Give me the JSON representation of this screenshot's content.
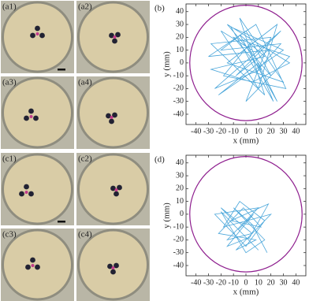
{
  "photo_panels": [
    {
      "label": "(a1)"
    },
    {
      "label": "(a2)"
    },
    {
      "label": "(a3)"
    },
    {
      "label": "(a4)"
    },
    {
      "label": "(c1)"
    },
    {
      "label": "(c2)"
    },
    {
      "label": "(c3)"
    },
    {
      "label": "(c4)"
    }
  ],
  "chart_data": [
    {
      "type": "line",
      "label": "(b)",
      "xlabel": "x (mm)",
      "ylabel": "y (mm)",
      "xlim": [
        -48,
        48
      ],
      "ylim": [
        -48,
        46
      ],
      "xticks": [
        -40,
        -30,
        -20,
        -10,
        0,
        10,
        20,
        30,
        40
      ],
      "yticks": [
        -40,
        -30,
        -20,
        -10,
        0,
        10,
        20,
        30,
        40
      ],
      "boundary": {
        "radius": 45,
        "color": "#8e1e8e"
      },
      "series": [
        {
          "color": "#4aa6da",
          "x": [
            5,
            -20,
            10,
            25,
            -15,
            30,
            -5,
            15,
            -28,
            20,
            0,
            35,
            -10,
            12,
            -25,
            28,
            -8,
            18,
            -30,
            8,
            32,
            -18,
            3,
            22,
            -12,
            30,
            -22,
            10,
            25,
            -5,
            15,
            -28,
            5,
            35,
            -15,
            20,
            0,
            -20,
            28,
            10
          ],
          "values": [
            10,
            25,
            -20,
            30,
            0,
            -15,
            35,
            -25,
            15,
            20,
            -30,
            5,
            20,
            -5,
            -20,
            25,
            -10,
            10,
            5,
            30,
            -20,
            -10,
            15,
            -30,
            28,
            10,
            -25,
            0,
            -30,
            22,
            5,
            -5,
            -15,
            0,
            30,
            -10,
            25,
            10,
            15,
            -5
          ]
        }
      ]
    },
    {
      "type": "line",
      "label": "(d)",
      "xlabel": "x (mm)",
      "ylabel": "y (mm)",
      "xlim": [
        -48,
        48
      ],
      "ylim": [
        -48,
        46
      ],
      "xticks": [
        -40,
        -30,
        -20,
        -10,
        0,
        10,
        20,
        30,
        40
      ],
      "yticks": [
        -40,
        -30,
        -20,
        -10,
        0,
        10,
        20,
        30,
        40
      ],
      "boundary": {
        "radius": 45,
        "color": "#8e1e8e"
      },
      "series": [
        {
          "color": "#4aa6da",
          "x": [
            -10,
            -20,
            5,
            -15,
            10,
            -25,
            0,
            15,
            -5,
            -18,
            20,
            -8,
            8,
            -22,
            -2,
            12,
            -12,
            18,
            3,
            -15,
            6,
            -6,
            10,
            -20,
            0,
            15,
            -10,
            5,
            17
          ],
          "values": [
            -5,
            5,
            -15,
            -20,
            5,
            0,
            -25,
            -5,
            10,
            -10,
            0,
            -28,
            -20,
            -15,
            5,
            -10,
            -5,
            8,
            -18,
            -25,
            0,
            -12,
            -28,
            2,
            -30,
            -20,
            5,
            -8,
            -30
          ]
        }
      ]
    }
  ]
}
